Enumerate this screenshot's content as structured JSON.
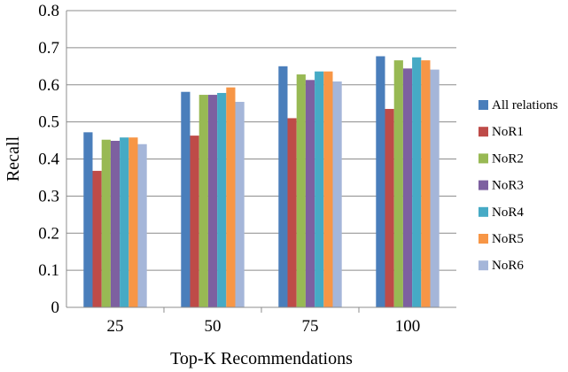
{
  "chart_data": {
    "type": "bar",
    "title": "",
    "xlabel": "Top-K Recommendations",
    "ylabel": "Recall",
    "ylim": [
      0,
      0.8
    ],
    "ytick_step": 0.1,
    "yticks": [
      "0",
      "0.1",
      "0.2",
      "0.3",
      "0.4",
      "0.5",
      "0.6",
      "0.7",
      "0.8"
    ],
    "grid": true,
    "legend_position": "right",
    "categories": [
      "25",
      "50",
      "75",
      "100"
    ],
    "series": [
      {
        "name": "All relations",
        "color": "#4A7EBB",
        "values": [
          0.472,
          0.581,
          0.65,
          0.677
        ]
      },
      {
        "name": "NoR1",
        "color": "#BE4B48",
        "values": [
          0.368,
          0.463,
          0.51,
          0.535
        ]
      },
      {
        "name": "NoR2",
        "color": "#98B954",
        "values": [
          0.452,
          0.573,
          0.628,
          0.666
        ]
      },
      {
        "name": "NoR3",
        "color": "#7D60A0",
        "values": [
          0.449,
          0.573,
          0.613,
          0.644
        ]
      },
      {
        "name": "NoR4",
        "color": "#46AAC5",
        "values": [
          0.458,
          0.578,
          0.636,
          0.674
        ]
      },
      {
        "name": "NoR5",
        "color": "#F79646",
        "values": [
          0.458,
          0.593,
          0.636,
          0.666
        ]
      },
      {
        "name": "NoR6",
        "color": "#A5B6D9",
        "values": [
          0.44,
          0.554,
          0.609,
          0.641
        ]
      }
    ]
  }
}
